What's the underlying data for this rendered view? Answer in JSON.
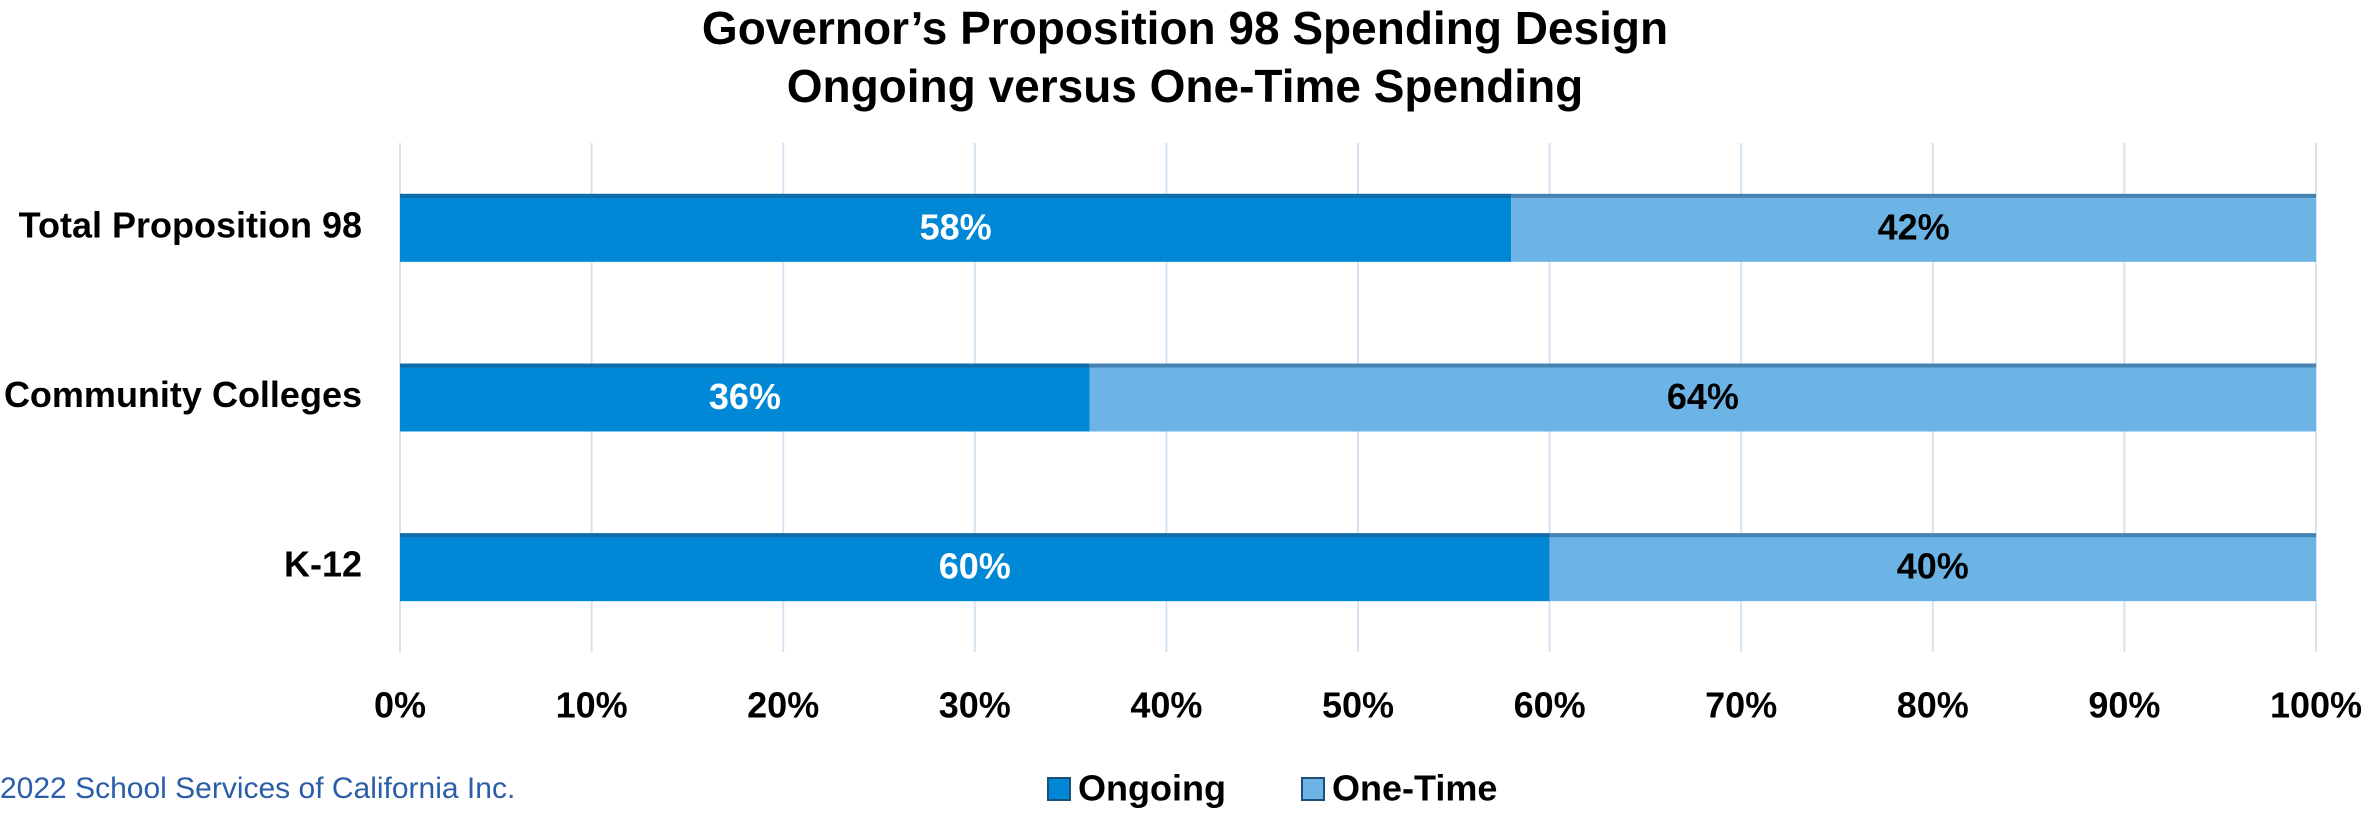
{
  "chart_data": {
    "type": "stacked-bar-horizontal",
    "title": "Governor’s Proposition 98 Spending Design",
    "subtitle": "Ongoing versus One-Time Spending",
    "categories": [
      "Total Proposition 98",
      "Community Colleges",
      "K-12"
    ],
    "series": [
      {
        "name": "Ongoing",
        "color": "#0088d6",
        "values": [
          58,
          36,
          60
        ],
        "value_labels": [
          "58%",
          "36%",
          "60%"
        ]
      },
      {
        "name": "One-Time",
        "color": "#6cb4e6",
        "values": [
          42,
          64,
          40
        ],
        "value_labels": [
          "42%",
          "64%",
          "40%"
        ]
      }
    ],
    "xlim": [
      0,
      100
    ],
    "xticks": [
      {
        "value": 0,
        "label": "0%"
      },
      {
        "value": 10,
        "label": "10%"
      },
      {
        "value": 20,
        "label": "20%"
      },
      {
        "value": 30,
        "label": "30%"
      },
      {
        "value": 40,
        "label": "40%"
      },
      {
        "value": 50,
        "label": "50%"
      },
      {
        "value": 60,
        "label": "60%"
      },
      {
        "value": 70,
        "label": "70%"
      },
      {
        "value": 80,
        "label": "80%"
      },
      {
        "value": 90,
        "label": "90%"
      },
      {
        "value": 100,
        "label": "100%"
      }
    ],
    "grid": true,
    "legend": "bottom",
    "footnote": "2022 School Services of California Inc."
  }
}
